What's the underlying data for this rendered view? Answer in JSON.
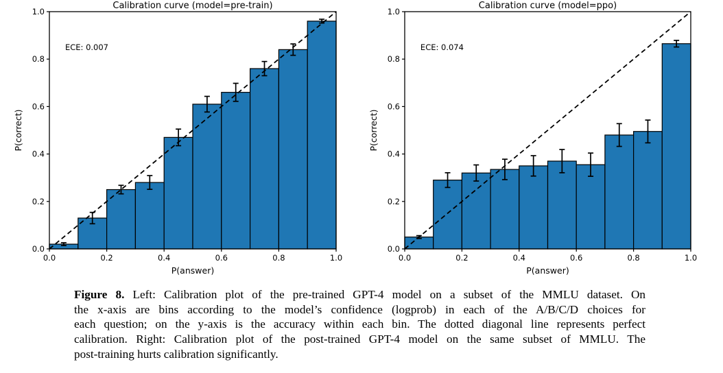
{
  "caption": {
    "label": "Figure 8.",
    "lines": [
      "Left: Calibration plot of the pre-trained GPT-4 model on a subset of the MMLU dataset. On",
      "the x-axis are bins according to the model’s confidence (logprob) in each of the A/B/C/D choices for",
      "each question; on the y-axis is the accuracy within each bin. The dotted diagonal line represents perfect",
      "calibration. Right: Calibration plot of the post-trained GPT-4 model on the same subset of MMLU. The",
      "post-training hurts calibration significantly."
    ]
  },
  "chart_data": [
    {
      "type": "bar",
      "title": "Calibration curve (model=pre-train)",
      "annotation": "ECE: 0.007",
      "xlabel": "P(answer)",
      "ylabel": "P(correct)",
      "xlim": [
        0.0,
        1.0
      ],
      "ylim": [
        0.0,
        1.0
      ],
      "xticks": [
        "0.0",
        "0.2",
        "0.4",
        "0.6",
        "0.8",
        "1.0"
      ],
      "yticks": [
        "0.0",
        "0.2",
        "0.4",
        "0.6",
        "0.8",
        "1.0"
      ],
      "bin_edges": [
        0.0,
        0.1,
        0.2,
        0.3,
        0.4,
        0.5,
        0.6,
        0.7,
        0.8,
        0.9,
        1.0
      ],
      "values": [
        0.02,
        0.13,
        0.25,
        0.28,
        0.47,
        0.61,
        0.66,
        0.76,
        0.84,
        0.96
      ],
      "errors": [
        0.006,
        0.024,
        0.018,
        0.029,
        0.035,
        0.033,
        0.038,
        0.03,
        0.024,
        0.008
      ],
      "diagonal": true,
      "grid": false,
      "legend": false,
      "bar_color": "#1f77b4",
      "edge_color": "#000000"
    },
    {
      "type": "bar",
      "title": "Calibration curve (model=ppo)",
      "annotation": "ECE: 0.074",
      "xlabel": "P(answer)",
      "ylabel": "P(correct)",
      "xlim": [
        0.0,
        1.0
      ],
      "ylim": [
        0.0,
        1.0
      ],
      "xticks": [
        "0.0",
        "0.2",
        "0.4",
        "0.6",
        "0.8",
        "1.0"
      ],
      "yticks": [
        "0.0",
        "0.2",
        "0.4",
        "0.6",
        "0.8",
        "1.0"
      ],
      "bin_edges": [
        0.0,
        0.1,
        0.2,
        0.3,
        0.4,
        0.5,
        0.6,
        0.7,
        0.8,
        0.9,
        1.0
      ],
      "values": [
        0.05,
        0.29,
        0.32,
        0.335,
        0.35,
        0.37,
        0.355,
        0.48,
        0.495,
        0.865
      ],
      "errors": [
        0.006,
        0.031,
        0.034,
        0.043,
        0.043,
        0.049,
        0.049,
        0.048,
        0.048,
        0.014
      ],
      "diagonal": true,
      "grid": false,
      "legend": false,
      "bar_color": "#1f77b4",
      "edge_color": "#000000"
    }
  ]
}
